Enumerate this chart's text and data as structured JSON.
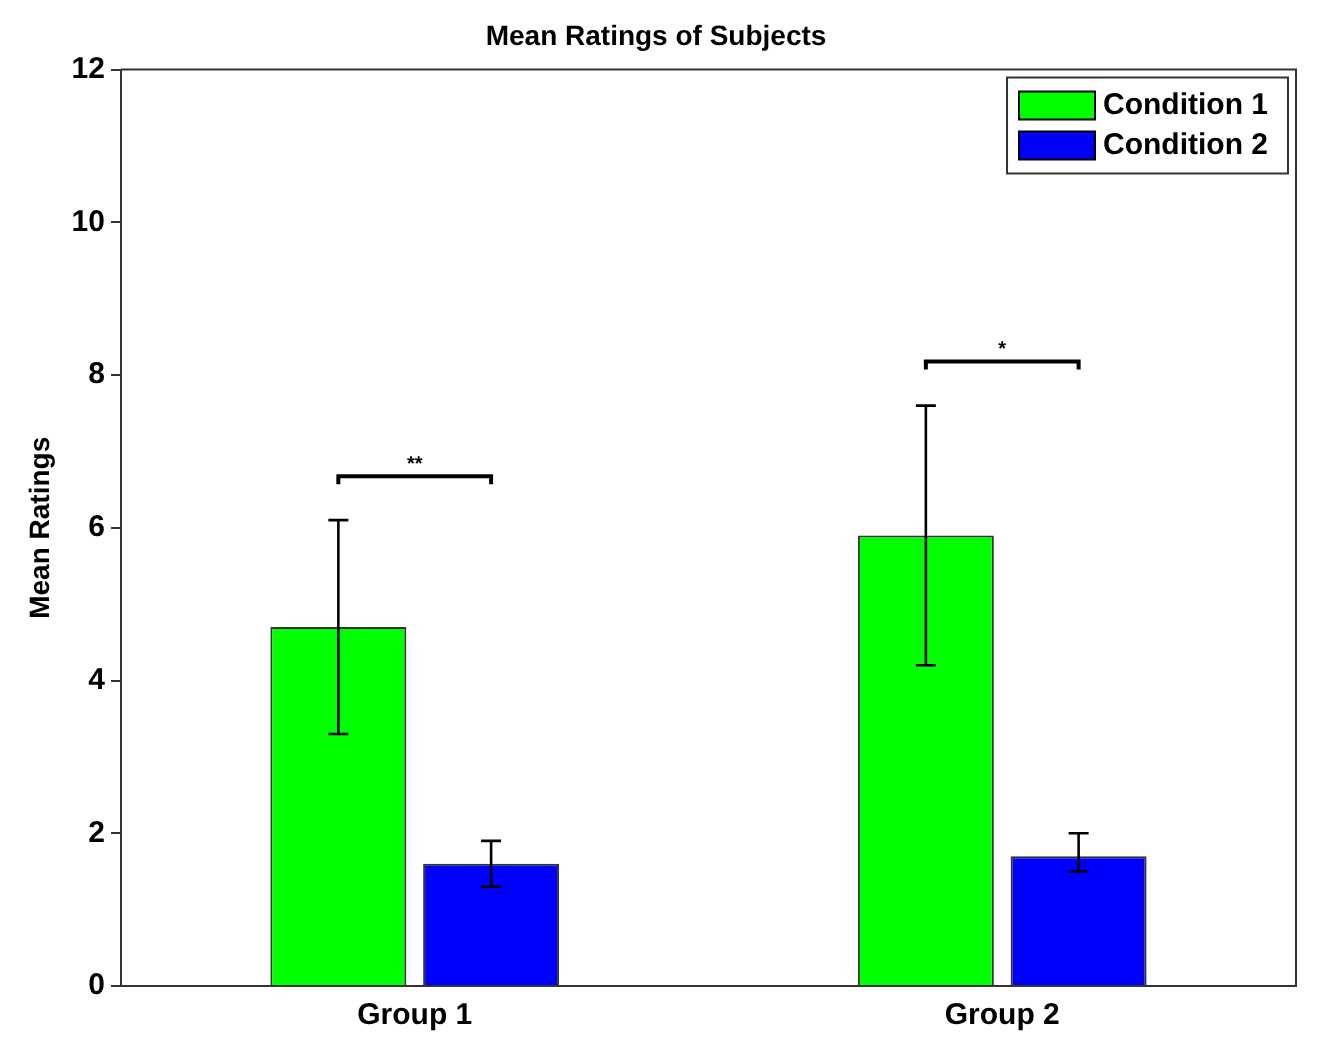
{
  "chart_data": {
    "type": "bar",
    "title": "Mean Ratings of Subjects",
    "ylabel": "Mean Ratings",
    "categories": [
      "Group 1",
      "Group 2"
    ],
    "series": [
      {
        "name": "Condition 1",
        "color": "#00ff00",
        "values": [
          4.7,
          5.9
        ],
        "errors": [
          [
            3.3,
            6.1
          ],
          [
            4.2,
            7.6
          ]
        ]
      },
      {
        "name": "Condition 2",
        "color": "#0000ff",
        "values": [
          1.6,
          1.7
        ],
        "errors": [
          [
            1.3,
            1.9
          ],
          [
            1.5,
            2.0
          ]
        ]
      }
    ],
    "ylim": [
      0,
      12
    ],
    "yticks": [
      0,
      2,
      4,
      6,
      8,
      10,
      12
    ],
    "grid": false,
    "legend": "top right",
    "annotations": [
      "**",
      "*"
    ]
  }
}
